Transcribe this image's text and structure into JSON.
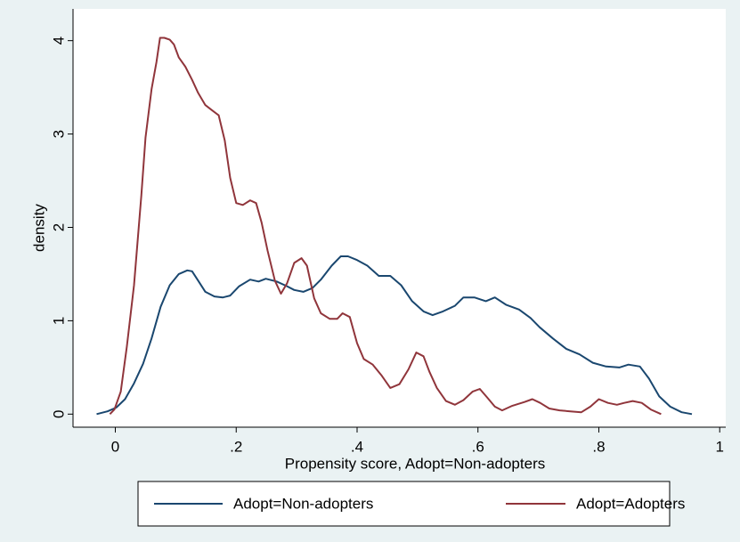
{
  "chart_data": {
    "type": "line",
    "xlabel": "Propensity score, Adopt=Non-adopters",
    "ylabel": "density",
    "xlim": [
      -0.07,
      1.01
    ],
    "ylim": [
      -0.14,
      4.34
    ],
    "xticks": [
      0,
      {
        "value": 0.2,
        "label": ".2"
      },
      {
        "value": 0.4,
        "label": ".4"
      },
      {
        "value": 0.6,
        "label": ".6"
      },
      {
        "value": 0.8,
        "label": ".8"
      },
      1
    ],
    "yticks": [
      0,
      1,
      2,
      3,
      4
    ],
    "grid": false,
    "legend": "bottom",
    "series": [
      {
        "name": "Adopt=Non-adopters",
        "color": "#1a476f",
        "x": [
          -0.031,
          -0.013,
          0.0015,
          0.016,
          0.031,
          0.046,
          0.06,
          0.075,
          0.09,
          0.105,
          0.119,
          0.127,
          0.137,
          0.149,
          0.164,
          0.178,
          0.19,
          0.205,
          0.223,
          0.237,
          0.249,
          0.267,
          0.284,
          0.296,
          0.311,
          0.326,
          0.34,
          0.358,
          0.373,
          0.385,
          0.4,
          0.417,
          0.436,
          0.455,
          0.473,
          0.491,
          0.51,
          0.525,
          0.542,
          0.562,
          0.576,
          0.594,
          0.613,
          0.628,
          0.647,
          0.668,
          0.687,
          0.702,
          0.724,
          0.746,
          0.768,
          0.79,
          0.812,
          0.834,
          0.849,
          0.868,
          0.883,
          0.9,
          0.918,
          0.937,
          0.954
        ],
        "values": [
          0,
          0.03,
          0.07,
          0.16,
          0.33,
          0.54,
          0.81,
          1.15,
          1.38,
          1.5,
          1.54,
          1.53,
          1.43,
          1.31,
          1.26,
          1.25,
          1.27,
          1.37,
          1.44,
          1.42,
          1.45,
          1.42,
          1.37,
          1.33,
          1.31,
          1.35,
          1.44,
          1.59,
          1.69,
          1.69,
          1.65,
          1.59,
          1.48,
          1.48,
          1.38,
          1.21,
          1.1,
          1.06,
          1.1,
          1.16,
          1.25,
          1.25,
          1.21,
          1.25,
          1.17,
          1.12,
          1.03,
          0.93,
          0.81,
          0.7,
          0.64,
          0.55,
          0.51,
          0.5,
          0.53,
          0.51,
          0.38,
          0.19,
          0.08,
          0.02,
          0
        ]
      },
      {
        "name": "Adopt=Adopters",
        "color": "#90353b",
        "x": [
          -0.009,
          -0.0015,
          0.009,
          0.019,
          0.031,
          0.043,
          0.05,
          0.06,
          0.068,
          0.074,
          0.081,
          0.09,
          0.097,
          0.105,
          0.116,
          0.127,
          0.137,
          0.149,
          0.161,
          0.171,
          0.181,
          0.19,
          0.2,
          0.211,
          0.223,
          0.233,
          0.242,
          0.252,
          0.264,
          0.274,
          0.284,
          0.296,
          0.308,
          0.317,
          0.329,
          0.34,
          0.355,
          0.367,
          0.376,
          0.388,
          0.4,
          0.411,
          0.426,
          0.441,
          0.455,
          0.47,
          0.485,
          0.498,
          0.51,
          0.52,
          0.532,
          0.547,
          0.562,
          0.576,
          0.591,
          0.603,
          0.615,
          0.628,
          0.64,
          0.657,
          0.677,
          0.69,
          0.703,
          0.718,
          0.735,
          0.753,
          0.771,
          0.786,
          0.8,
          0.815,
          0.83,
          0.842,
          0.856,
          0.871,
          0.886,
          0.903
        ],
        "values": [
          0,
          0.05,
          0.24,
          0.72,
          1.38,
          2.34,
          2.96,
          3.48,
          3.77,
          4.03,
          4.03,
          4.01,
          3.96,
          3.82,
          3.72,
          3.58,
          3.44,
          3.31,
          3.25,
          3.2,
          2.93,
          2.53,
          2.26,
          2.24,
          2.29,
          2.26,
          2.05,
          1.75,
          1.43,
          1.29,
          1.4,
          1.62,
          1.67,
          1.59,
          1.24,
          1.08,
          1.02,
          1.02,
          1.08,
          1.04,
          0.76,
          0.59,
          0.53,
          0.41,
          0.28,
          0.32,
          0.48,
          0.66,
          0.62,
          0.45,
          0.28,
          0.14,
          0.1,
          0.15,
          0.24,
          0.27,
          0.18,
          0.08,
          0.04,
          0.09,
          0.13,
          0.16,
          0.12,
          0.06,
          0.04,
          0.03,
          0.02,
          0.08,
          0.16,
          0.12,
          0.1,
          0.12,
          0.14,
          0.12,
          0.05,
          0
        ]
      }
    ]
  }
}
